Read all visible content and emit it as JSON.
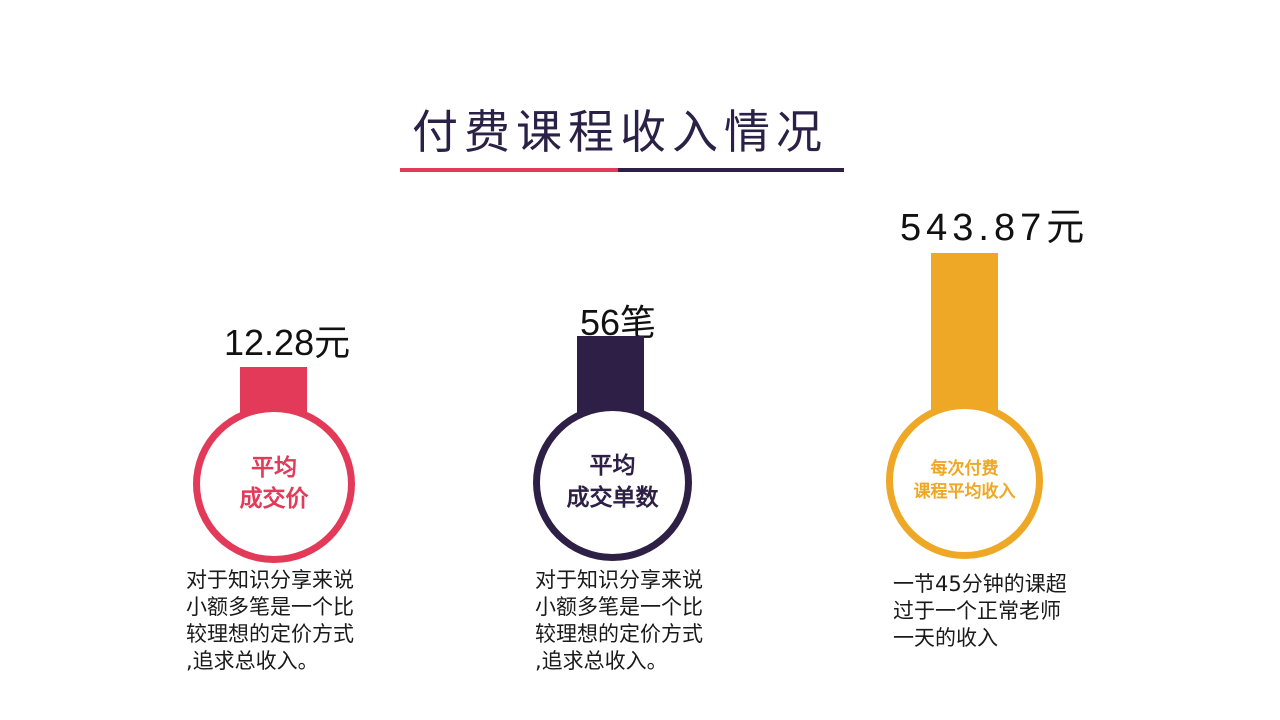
{
  "title": "付费课程收入情况",
  "colors": {
    "red": "#e23a58",
    "navy": "#2d1f45",
    "gold": "#eea825"
  },
  "chart_data": {
    "type": "bar",
    "categories": [
      "平均成交价",
      "平均成交单数",
      "每次付费课程平均收入"
    ],
    "values": [
      12.28,
      56,
      543.87
    ],
    "value_labels": [
      "12.28元",
      "56笔",
      "543.87元"
    ]
  },
  "items": [
    {
      "value_label": "12.28元",
      "circle_label": "平均\n成交价",
      "description": "对于知识分享来说\n小额多笔是一个比\n较理想的定价方式\n,追求总收入。",
      "color": "#e23a58"
    },
    {
      "value_label": "56笔",
      "circle_label": "平均\n成交单数",
      "description": "对于知识分享来说\n小额多笔是一个比\n较理想的定价方式\n,追求总收入。",
      "color": "#2d1f45"
    },
    {
      "value_label": "543.87元",
      "circle_label": "每次付费\n课程平均收入",
      "description": "一节45分钟的课超\n过于一个正常老师\n一天的收入",
      "color": "#eea825"
    }
  ]
}
